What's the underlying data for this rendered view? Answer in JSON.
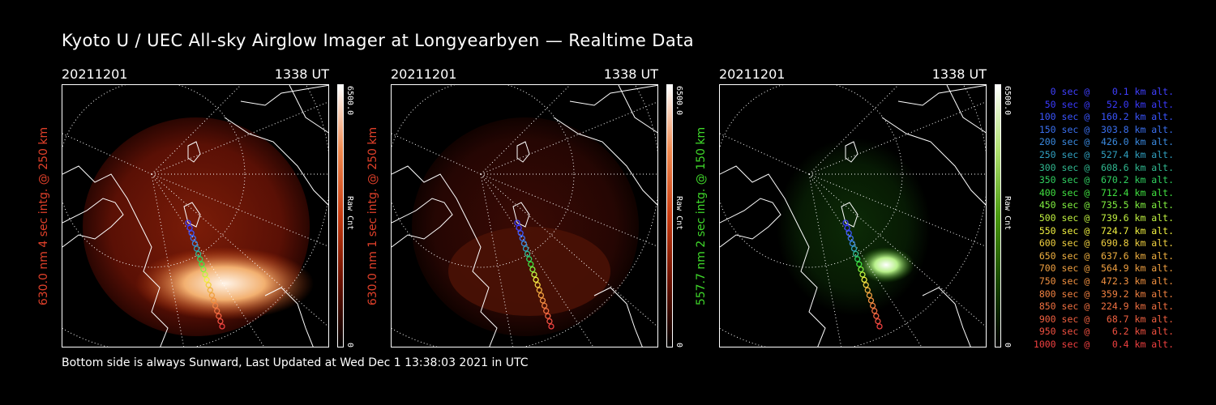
{
  "title": "Kyoto U / UEC All-sky Airglow Imager at Longyearbyen — Realtime Data",
  "footer": "Bottom side is always Sunward, Last Updated at Wed Dec  1 13:38:03 2021 in UTC",
  "panels": [
    {
      "date": "20211201",
      "time": "1338 UT",
      "ylabel": "630.0 nm 4 sec intg. @ 250 km",
      "label_color": "#e0402a",
      "cb_max": "6500.0",
      "cb_min": "0",
      "cb_unit": "Raw Cnt",
      "colormap": "red",
      "aurora": "strong"
    },
    {
      "date": "20211201",
      "time": "1338 UT",
      "ylabel": "630.0 nm 1 sec intg. @ 250 km",
      "label_color": "#e0402a",
      "cb_max": "6500.0",
      "cb_min": "0",
      "cb_unit": "Raw Cnt",
      "colormap": "red",
      "aurora": "weak"
    },
    {
      "date": "20211201",
      "time": "1338 UT",
      "ylabel": "557.7 nm 2 sec intg. @ 150 km",
      "label_color": "#3fd82a",
      "cb_max": "6500.0",
      "cb_min": "0",
      "cb_unit": "Raw Cnt",
      "colormap": "green",
      "aurora": "green"
    }
  ],
  "legend": [
    {
      "text": "   0 sec @    0.1 km alt.",
      "color": "#4040ff"
    },
    {
      "text": "  50 sec @   52.0 km alt.",
      "color": "#3a3aff"
    },
    {
      "text": " 100 sec @  160.2 km alt.",
      "color": "#3a55ff"
    },
    {
      "text": " 150 sec @  303.8 km alt.",
      "color": "#3a70f0"
    },
    {
      "text": " 200 sec @  426.0 km alt.",
      "color": "#3a8ae0"
    },
    {
      "text": " 250 sec @  527.4 km alt.",
      "color": "#30a0c0"
    },
    {
      "text": " 300 sec @  608.6 km alt.",
      "color": "#30b890"
    },
    {
      "text": " 350 sec @  670.2 km alt.",
      "color": "#30d060"
    },
    {
      "text": " 400 sec @  712.4 km alt.",
      "color": "#40e040"
    },
    {
      "text": " 450 sec @  735.5 km alt.",
      "color": "#80f040"
    },
    {
      "text": " 500 sec @  739.6 km alt.",
      "color": "#c0f040"
    },
    {
      "text": " 550 sec @  724.7 km alt.",
      "color": "#f0f040"
    },
    {
      "text": " 600 sec @  690.8 km alt.",
      "color": "#f0d040"
    },
    {
      "text": " 650 sec @  637.6 km alt.",
      "color": "#f0b040"
    },
    {
      "text": " 700 sec @  564.9 km alt.",
      "color": "#f0a040"
    },
    {
      "text": " 750 sec @  472.3 km alt.",
      "color": "#f09040"
    },
    {
      "text": " 800 sec @  359.2 km alt.",
      "color": "#f08040"
    },
    {
      "text": " 850 sec @  224.9 km alt.",
      "color": "#f07040"
    },
    {
      "text": " 900 sec @   68.7 km alt.",
      "color": "#f06040"
    },
    {
      "text": " 950 sec @    6.2 km alt.",
      "color": "#f05040"
    },
    {
      "text": "1000 sec @    0.4 km alt.",
      "color": "#f04040"
    }
  ]
}
